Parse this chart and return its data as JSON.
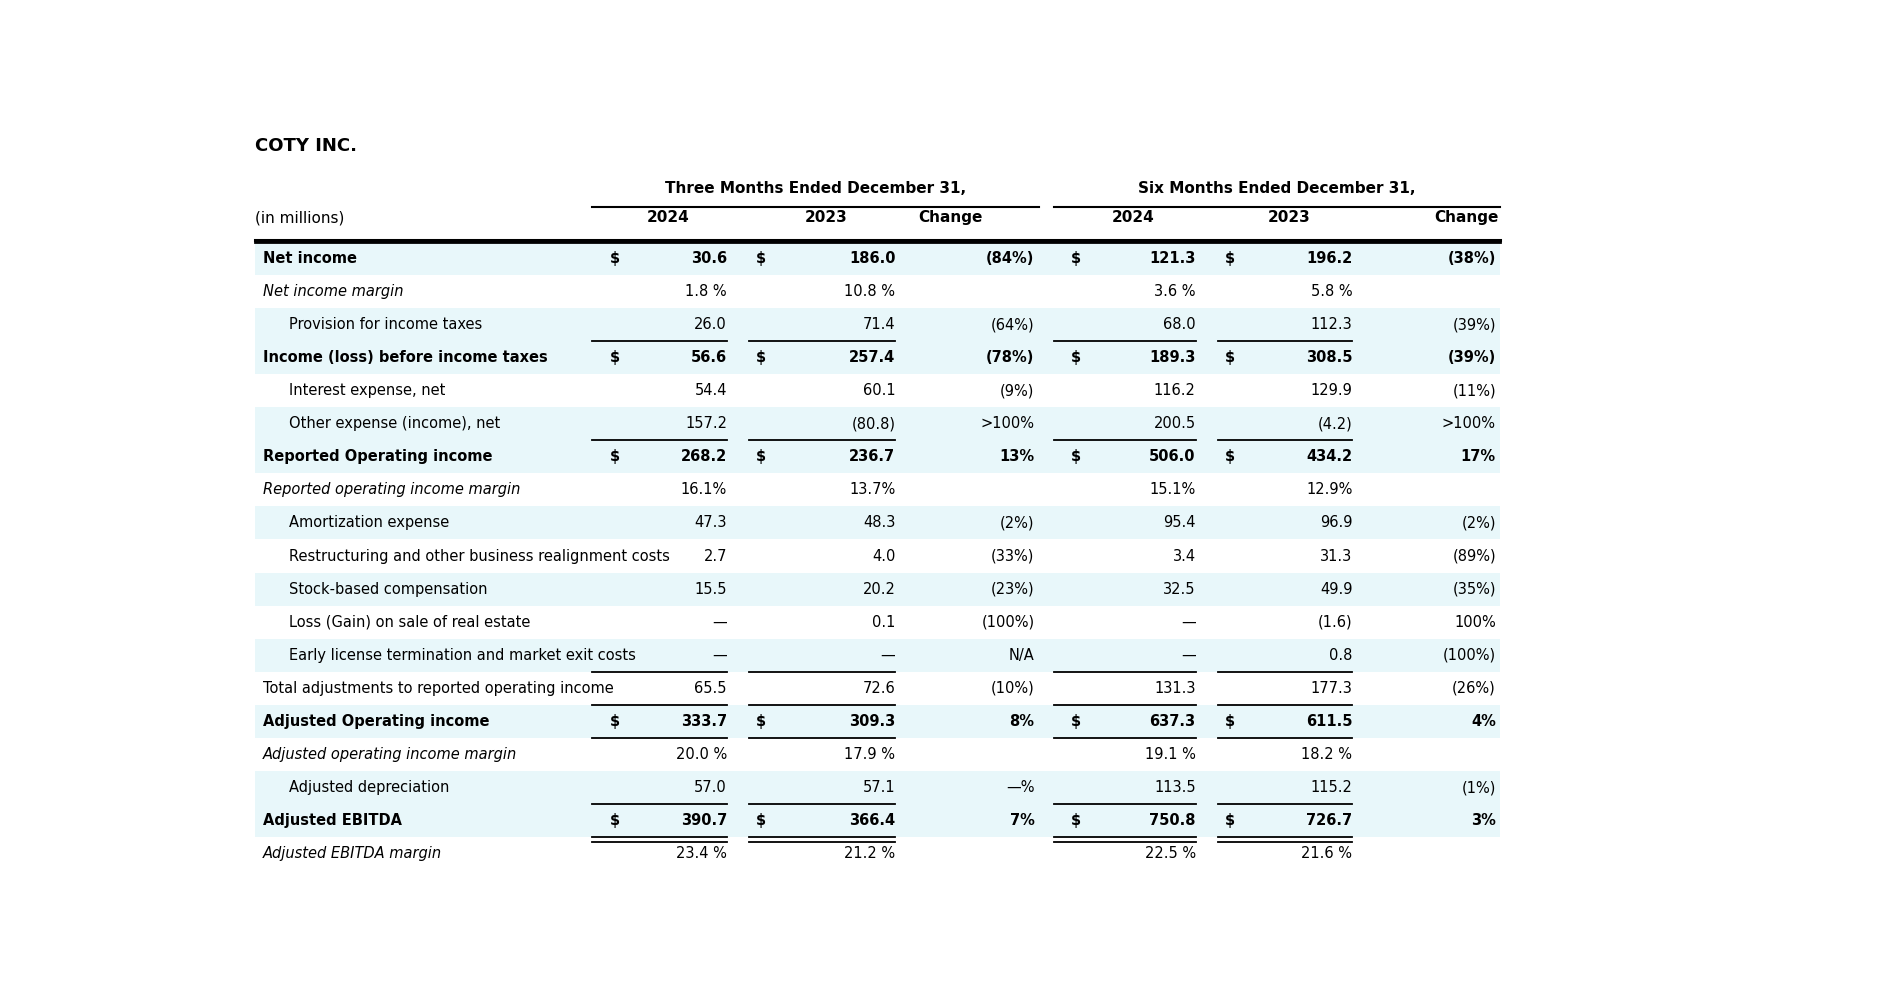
{
  "title": "COTY INC.",
  "subtitle": "(in millions)",
  "header_group1": "Three Months Ended December 31,",
  "header_group2": "Six Months Ended December 31,",
  "col_headers": [
    "2024",
    "2023",
    "Change",
    "2024",
    "2023",
    "Change"
  ],
  "rows": [
    {
      "label": "Net income",
      "bold": true,
      "italic": false,
      "indent": 0,
      "dollar": true,
      "bg": "#e8f7fa",
      "col0": "30.6",
      "col1": "186.0",
      "col2": "(84%)",
      "col3": "121.3",
      "col4": "196.2",
      "col5": "(38%)",
      "col3_dollar": true,
      "top_border": true,
      "bottom_border": false,
      "double_bottom": false,
      "underline_cols": []
    },
    {
      "label": "Net income margin",
      "bold": false,
      "italic": true,
      "indent": 0,
      "dollar": false,
      "bg": "#ffffff",
      "col0": "1.8 %",
      "col1": "10.8 %",
      "col2": "",
      "col3": "3.6 %",
      "col4": "5.8 %",
      "col5": "",
      "col3_dollar": false,
      "top_border": false,
      "bottom_border": false,
      "double_bottom": false,
      "underline_cols": []
    },
    {
      "label": "Provision for income taxes",
      "bold": false,
      "italic": false,
      "indent": 1,
      "dollar": false,
      "bg": "#e8f7fa",
      "col0": "26.0",
      "col1": "71.4",
      "col2": "(64%)",
      "col3": "68.0",
      "col4": "112.3",
      "col5": "(39%)",
      "col3_dollar": false,
      "top_border": false,
      "bottom_border": true,
      "double_bottom": false,
      "underline_cols": [
        0,
        1,
        3,
        4
      ]
    },
    {
      "label": "Income (loss) before income taxes",
      "bold": true,
      "italic": false,
      "indent": 0,
      "dollar": true,
      "bg": "#e8f7fa",
      "col0": "56.6",
      "col1": "257.4",
      "col2": "(78%)",
      "col3": "189.3",
      "col4": "308.5",
      "col5": "(39%)",
      "col3_dollar": true,
      "top_border": false,
      "bottom_border": false,
      "double_bottom": false,
      "underline_cols": []
    },
    {
      "label": "Interest expense, net",
      "bold": false,
      "italic": false,
      "indent": 1,
      "dollar": false,
      "bg": "#ffffff",
      "col0": "54.4",
      "col1": "60.1",
      "col2": "(9%)",
      "col3": "116.2",
      "col4": "129.9",
      "col5": "(11%)",
      "col3_dollar": false,
      "top_border": false,
      "bottom_border": false,
      "double_bottom": false,
      "underline_cols": []
    },
    {
      "label": "Other expense (income), net",
      "bold": false,
      "italic": false,
      "indent": 1,
      "dollar": false,
      "bg": "#e8f7fa",
      "col0": "157.2",
      "col1": "(80.8)",
      "col2": ">100%",
      "col3": "200.5",
      "col4": "(4.2)",
      "col5": ">100%",
      "col3_dollar": false,
      "top_border": false,
      "bottom_border": true,
      "double_bottom": false,
      "underline_cols": [
        0,
        1,
        3,
        4
      ]
    },
    {
      "label": "Reported Operating income",
      "bold": true,
      "italic": false,
      "indent": 0,
      "dollar": true,
      "bg": "#e8f7fa",
      "col0": "268.2",
      "col1": "236.7",
      "col2": "13%",
      "col3": "506.0",
      "col4": "434.2",
      "col5": "17%",
      "col3_dollar": true,
      "top_border": false,
      "bottom_border": false,
      "double_bottom": false,
      "underline_cols": []
    },
    {
      "label": "Reported operating income margin",
      "bold": false,
      "italic": true,
      "indent": 0,
      "dollar": false,
      "bg": "#ffffff",
      "col0": "16.1%",
      "col1": "13.7%",
      "col2": "",
      "col3": "15.1%",
      "col4": "12.9%",
      "col5": "",
      "col3_dollar": false,
      "top_border": false,
      "bottom_border": false,
      "double_bottom": false,
      "underline_cols": []
    },
    {
      "label": "Amortization expense",
      "bold": false,
      "italic": false,
      "indent": 1,
      "dollar": false,
      "bg": "#e8f7fa",
      "col0": "47.3",
      "col1": "48.3",
      "col2": "(2%)",
      "col3": "95.4",
      "col4": "96.9",
      "col5": "(2%)",
      "col3_dollar": false,
      "top_border": false,
      "bottom_border": false,
      "double_bottom": false,
      "underline_cols": []
    },
    {
      "label": "Restructuring and other business realignment costs",
      "bold": false,
      "italic": false,
      "indent": 1,
      "dollar": false,
      "bg": "#ffffff",
      "col0": "2.7",
      "col1": "4.0",
      "col2": "(33%)",
      "col3": "3.4",
      "col4": "31.3",
      "col5": "(89%)",
      "col3_dollar": false,
      "top_border": false,
      "bottom_border": false,
      "double_bottom": false,
      "underline_cols": []
    },
    {
      "label": "Stock-based compensation",
      "bold": false,
      "italic": false,
      "indent": 1,
      "dollar": false,
      "bg": "#e8f7fa",
      "col0": "15.5",
      "col1": "20.2",
      "col2": "(23%)",
      "col3": "32.5",
      "col4": "49.9",
      "col5": "(35%)",
      "col3_dollar": false,
      "top_border": false,
      "bottom_border": false,
      "double_bottom": false,
      "underline_cols": []
    },
    {
      "label": "Loss (Gain) on sale of real estate",
      "bold": false,
      "italic": false,
      "indent": 1,
      "dollar": false,
      "bg": "#ffffff",
      "col0": "—",
      "col1": "0.1",
      "col2": "(100%)",
      "col3": "—",
      "col4": "(1.6)",
      "col5": "100%",
      "col3_dollar": false,
      "top_border": false,
      "bottom_border": false,
      "double_bottom": false,
      "underline_cols": []
    },
    {
      "label": "Early license termination and market exit costs",
      "bold": false,
      "italic": false,
      "indent": 1,
      "dollar": false,
      "bg": "#e8f7fa",
      "col0": "—",
      "col1": "—",
      "col2": "N/A",
      "col3": "—",
      "col4": "0.8",
      "col5": "(100%)",
      "col3_dollar": false,
      "top_border": false,
      "bottom_border": true,
      "double_bottom": false,
      "underline_cols": [
        0,
        1,
        3,
        4
      ]
    },
    {
      "label": "Total adjustments to reported operating income",
      "bold": false,
      "italic": false,
      "indent": 0,
      "dollar": false,
      "bg": "#ffffff",
      "col0": "65.5",
      "col1": "72.6",
      "col2": "(10%)",
      "col3": "131.3",
      "col4": "177.3",
      "col5": "(26%)",
      "col3_dollar": false,
      "top_border": false,
      "bottom_border": true,
      "double_bottom": false,
      "underline_cols": [
        0,
        1,
        3,
        4
      ]
    },
    {
      "label": "Adjusted Operating income",
      "bold": true,
      "italic": false,
      "indent": 0,
      "dollar": true,
      "bg": "#e8f7fa",
      "col0": "333.7",
      "col1": "309.3",
      "col2": "8%",
      "col3": "637.3",
      "col4": "611.5",
      "col5": "4%",
      "col3_dollar": true,
      "top_border": false,
      "bottom_border": true,
      "double_bottom": false,
      "underline_cols": [
        0,
        1,
        3,
        4
      ]
    },
    {
      "label": "Adjusted operating income margin",
      "bold": false,
      "italic": true,
      "indent": 0,
      "dollar": false,
      "bg": "#ffffff",
      "col0": "20.0 %",
      "col1": "17.9 %",
      "col2": "",
      "col3": "19.1 %",
      "col4": "18.2 %",
      "col5": "",
      "col3_dollar": false,
      "top_border": false,
      "bottom_border": false,
      "double_bottom": false,
      "underline_cols": []
    },
    {
      "label": "Adjusted depreciation",
      "bold": false,
      "italic": false,
      "indent": 1,
      "dollar": false,
      "bg": "#e8f7fa",
      "col0": "57.0",
      "col1": "57.1",
      "col2": "—%",
      "col3": "113.5",
      "col4": "115.2",
      "col5": "(1%)",
      "col3_dollar": false,
      "top_border": false,
      "bottom_border": true,
      "double_bottom": false,
      "underline_cols": [
        0,
        1,
        3,
        4
      ]
    },
    {
      "label": "Adjusted EBITDA",
      "bold": true,
      "italic": false,
      "indent": 0,
      "dollar": true,
      "bg": "#e8f7fa",
      "col0": "390.7",
      "col1": "366.4",
      "col2": "7%",
      "col3": "750.8",
      "col4": "726.7",
      "col5": "3%",
      "col3_dollar": true,
      "top_border": false,
      "bottom_border": true,
      "double_bottom": true,
      "underline_cols": [
        0,
        1,
        3,
        4
      ]
    },
    {
      "label": "Adjusted EBITDA margin",
      "bold": false,
      "italic": true,
      "indent": 0,
      "dollar": false,
      "bg": "#ffffff",
      "col0": "23.4 %",
      "col1": "21.2 %",
      "col2": "",
      "col3": "22.5 %",
      "col4": "21.6 %",
      "col5": "",
      "col3_dollar": false,
      "top_border": false,
      "bottom_border": false,
      "double_bottom": false,
      "underline_cols": []
    }
  ],
  "text_color": "#000000",
  "font_size": 10.5,
  "header_font_size": 11
}
